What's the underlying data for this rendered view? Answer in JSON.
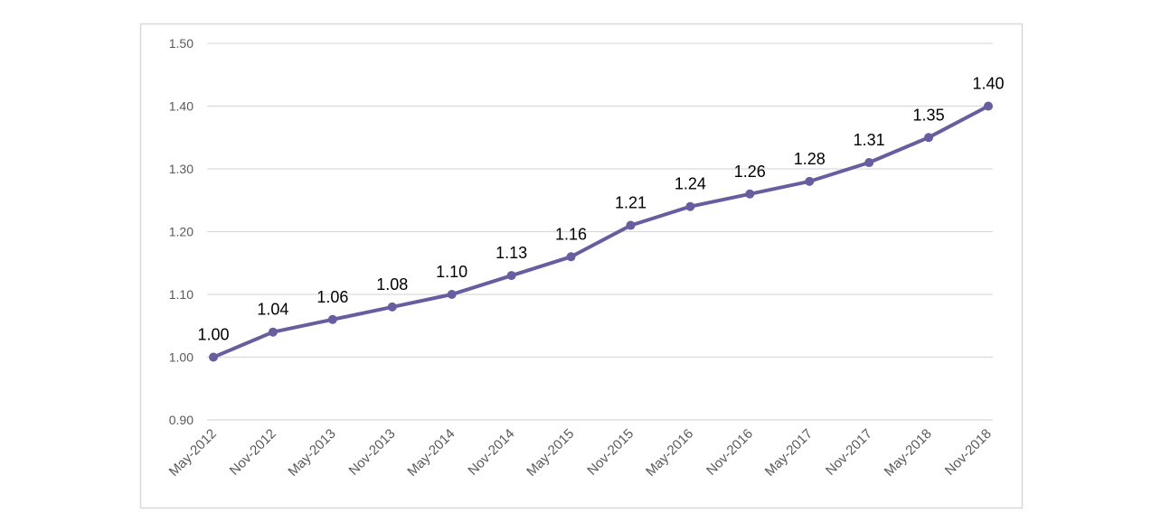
{
  "chart_data": {
    "type": "line",
    "title": "",
    "xlabel": "",
    "ylabel": "",
    "categories": [
      "May-2012",
      "Nov-2012",
      "May-2013",
      "Nov-2013",
      "May-2014",
      "Nov-2014",
      "May-2015",
      "Nov-2015",
      "May-2016",
      "Nov-2016",
      "May-2017",
      "Nov-2017",
      "May-2018",
      "Nov-2018"
    ],
    "series": [
      {
        "values": [
          1.0,
          1.04,
          1.06,
          1.08,
          1.1,
          1.13,
          1.16,
          1.21,
          1.24,
          1.26,
          1.28,
          1.31,
          1.35,
          1.4
        ],
        "labels": [
          "1.00",
          "1.04",
          "1.06",
          "1.08",
          "1.10",
          "1.13",
          "1.16",
          "1.21",
          "1.24",
          "1.26",
          "1.28",
          "1.31",
          "1.35",
          "1.40"
        ]
      }
    ],
    "ylim": [
      0.9,
      1.5
    ],
    "yticks": [
      0.9,
      1.0,
      1.1,
      1.2,
      1.3,
      1.4,
      1.5
    ],
    "ytick_labels": [
      "0.90",
      "1.00",
      "1.10",
      "1.20",
      "1.30",
      "1.40",
      "1.50"
    ],
    "grid": true,
    "legend": "none",
    "colors": {
      "line": "#665e9e",
      "grid": "#d9d9d9",
      "border": "#d9d9d9",
      "tick_text": "#595959",
      "label_text": "#000000"
    }
  }
}
